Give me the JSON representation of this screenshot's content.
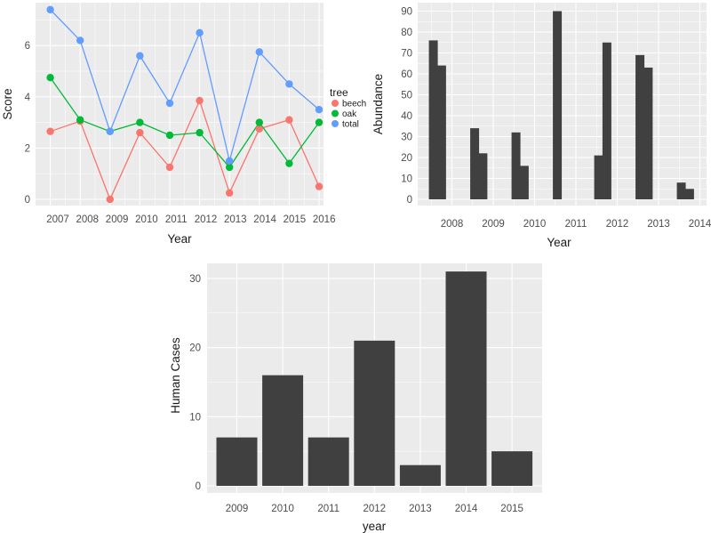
{
  "chart_data": [
    {
      "type": "line",
      "xlabel": "Year",
      "ylabel": "Score",
      "x": [
        2007,
        2008,
        2009,
        2010,
        2011,
        2012,
        2013,
        2014,
        2015,
        2016
      ],
      "xticks": [
        "2007",
        "2008",
        "2009",
        "2010",
        "2011",
        "2012",
        "2013",
        "2014",
        "2015",
        "2016"
      ],
      "yticks": [
        "0",
        "2",
        "4",
        "6"
      ],
      "ylim": [
        -0.3,
        7.6
      ],
      "legend": {
        "title": "tree",
        "position": "right"
      },
      "series": [
        {
          "name": "beech",
          "color": "#F8766D",
          "values": [
            2.65,
            3.05,
            0.0,
            2.6,
            1.25,
            3.85,
            0.25,
            2.75,
            3.1,
            0.5
          ]
        },
        {
          "name": "oak",
          "color": "#00BA38",
          "values": [
            4.75,
            3.1,
            2.65,
            3.0,
            2.5,
            2.6,
            1.25,
            3.0,
            1.4,
            3.0
          ]
        },
        {
          "name": "total",
          "color": "#619CFF",
          "values": [
            7.4,
            6.2,
            2.65,
            5.6,
            3.75,
            6.5,
            1.5,
            5.75,
            4.5,
            3.5
          ]
        }
      ]
    },
    {
      "type": "bar",
      "xlabel": "Year",
      "ylabel": "Abundance",
      "xticks": [
        "2008",
        "2009",
        "2010",
        "2011",
        "2012",
        "2013",
        "2014"
      ],
      "yticks": [
        "0",
        "10",
        "20",
        "30",
        "40",
        "50",
        "60",
        "70",
        "80",
        "90"
      ],
      "ylim": [
        0,
        93
      ],
      "x": [
        2007.55,
        2007.75,
        2008.55,
        2008.75,
        2009.55,
        2009.75,
        2010.55,
        2011.55,
        2011.75,
        2012.55,
        2012.75,
        2013.55,
        2013.75
      ],
      "values": [
        76,
        64,
        34,
        22,
        32,
        16,
        90,
        21,
        75,
        69,
        63,
        8,
        5
      ],
      "color": "#404040"
    },
    {
      "type": "bar",
      "xlabel": "year",
      "ylabel": "Human Cases",
      "categories": [
        "2009",
        "2010",
        "2011",
        "2012",
        "2013",
        "2014",
        "2015"
      ],
      "values": [
        7,
        16,
        7,
        21,
        3,
        31,
        5
      ],
      "yticks": [
        "0",
        "10",
        "20",
        "30"
      ],
      "ylim": [
        0,
        32.5
      ],
      "color": "#404040"
    }
  ]
}
